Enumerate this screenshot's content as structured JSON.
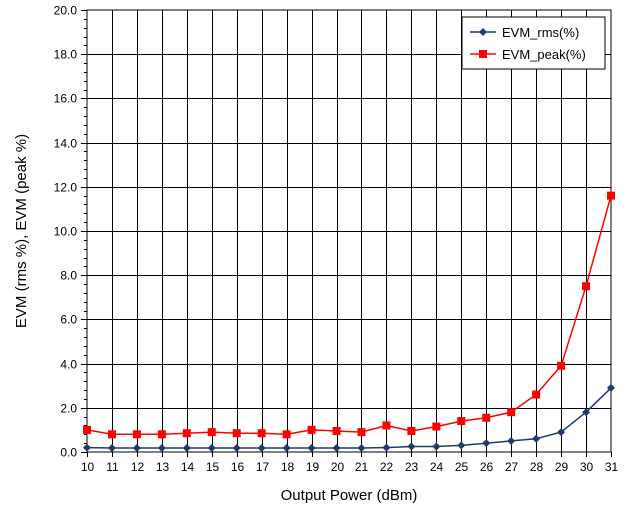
{
  "chart_data": {
    "type": "line",
    "title": "",
    "xlabel": "Output Power (dBm)",
    "ylabel": "EVM (rms %), EVM (peak %)",
    "x": [
      10,
      11,
      12,
      13,
      14,
      15,
      16,
      17,
      18,
      19,
      20,
      21,
      22,
      23,
      24,
      25,
      26,
      27,
      28,
      29,
      30,
      31
    ],
    "x_tick_labels": [
      "10",
      "11",
      "12",
      "13",
      "14",
      "15",
      "16",
      "17",
      "18",
      "19",
      "20",
      "21",
      "22",
      "23",
      "24",
      "25",
      "26",
      "27",
      "28",
      "29",
      "30",
      "31"
    ],
    "xlim": [
      10,
      31
    ],
    "ylim": [
      0,
      20
    ],
    "y_ticks": [
      0,
      2,
      4,
      6,
      8,
      10,
      12,
      14,
      16,
      18,
      20
    ],
    "y_tick_labels": [
      "0.0",
      "2.0",
      "4.0",
      "6.0",
      "8.0",
      "10.0",
      "12.0",
      "14.0",
      "16.0",
      "18.0",
      "20.0"
    ],
    "grid": true,
    "legend_position": "top-right",
    "series": [
      {
        "name": "EVM_rms(%)",
        "color": "#1f3a6e",
        "marker": "diamond",
        "values": [
          0.2,
          0.18,
          0.18,
          0.18,
          0.18,
          0.18,
          0.18,
          0.18,
          0.18,
          0.18,
          0.18,
          0.18,
          0.2,
          0.25,
          0.25,
          0.3,
          0.4,
          0.5,
          0.6,
          0.9,
          1.8,
          2.9
        ]
      },
      {
        "name": "EVM_peak(%)",
        "color": "#ff0000",
        "marker": "square",
        "values": [
          1.0,
          0.8,
          0.8,
          0.8,
          0.85,
          0.9,
          0.85,
          0.85,
          0.8,
          1.0,
          0.95,
          0.9,
          1.2,
          0.95,
          1.15,
          1.4,
          1.55,
          1.8,
          2.6,
          3.9,
          7.5,
          11.6
        ]
      }
    ]
  }
}
